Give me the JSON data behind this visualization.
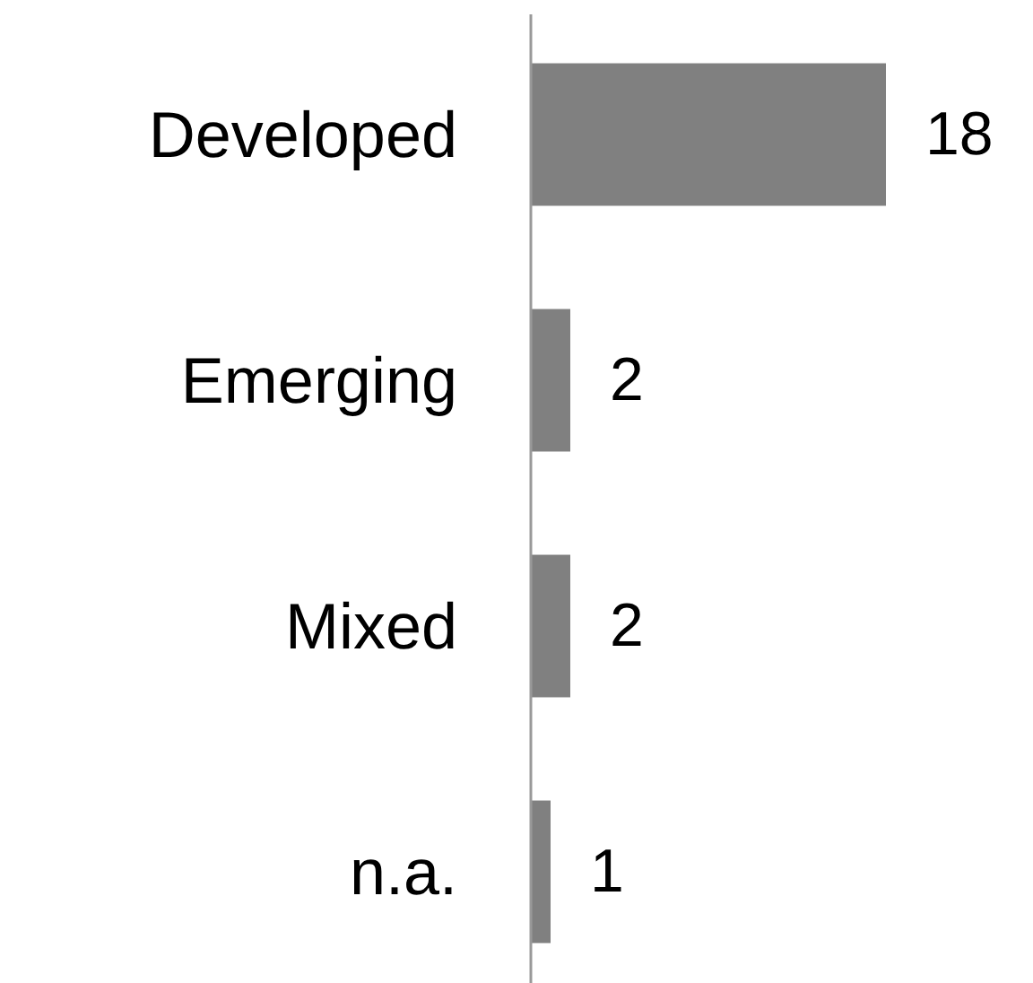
{
  "chart_data": {
    "type": "bar",
    "orientation": "horizontal",
    "categories": [
      "Developed",
      "Emerging",
      "Mixed",
      "n.a."
    ],
    "values": [
      18,
      2,
      2,
      1
    ],
    "color": "#808080",
    "data_labels": true
  }
}
